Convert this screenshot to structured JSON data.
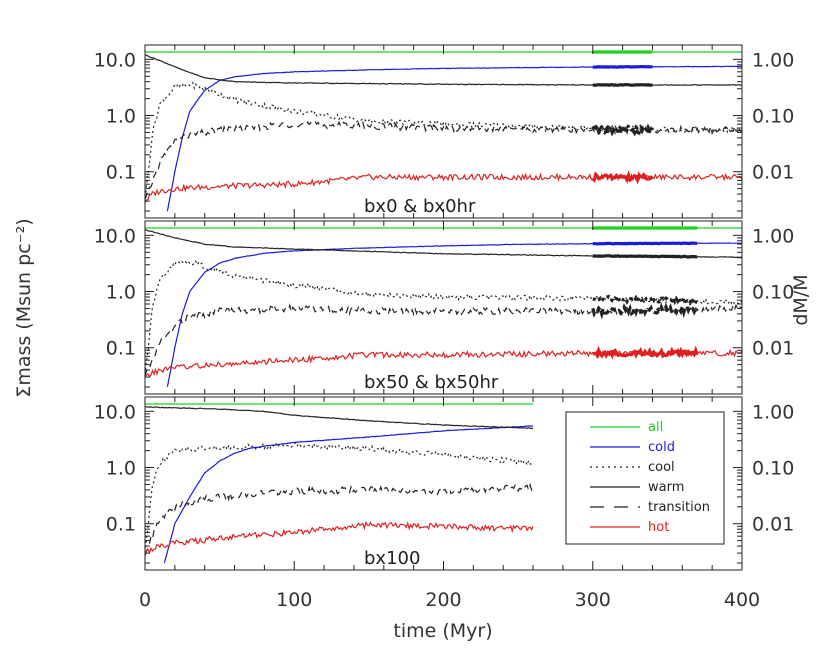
{
  "chart_data": {
    "type": "line",
    "xlabel": "time (Myr)",
    "ylabel_left": "Σmass (Msun pc⁻²)",
    "ylabel_right": "dM/M",
    "xlim": [
      0,
      400
    ],
    "x_ticks": [
      "0",
      "100",
      "200",
      "300",
      "400"
    ],
    "left_ticks": [
      "10.0",
      "1.0",
      "0.1"
    ],
    "right_ticks": [
      "1.00",
      "0.10",
      "0.01"
    ],
    "ylim_log": [
      0.015,
      18
    ],
    "legend": {
      "position": "lower-right of bottom panel",
      "entries": [
        {
          "label": "all",
          "color": "#22cc22",
          "style": "solid"
        },
        {
          "label": "cold",
          "color": "#1a1adc",
          "style": "solid"
        },
        {
          "label": "cool",
          "color": "#222222",
          "style": "dotted"
        },
        {
          "label": "warm",
          "color": "#222222",
          "style": "solid"
        },
        {
          "label": "transition",
          "color": "#222222",
          "style": "dashed"
        },
        {
          "label": "hot",
          "color": "#e02020",
          "style": "solid"
        }
      ]
    },
    "panels": [
      {
        "title": "bx0 & bx0hr",
        "end": 400,
        "hr": [
          300,
          340
        ],
        "series": [
          {
            "name": "all",
            "x": [
              0,
              400
            ],
            "y": [
              13.5,
              13.5
            ]
          },
          {
            "name": "cold",
            "x": [
              15,
              20,
              25,
              30,
              40,
              50,
              60,
              80,
              100,
              150,
              200,
              250,
              300,
              350,
              400
            ],
            "y": [
              0.02,
              0.1,
              0.4,
              1.2,
              2.8,
              4.2,
              4.9,
              5.6,
              6.0,
              6.5,
              6.9,
              7.1,
              7.3,
              7.4,
              7.5
            ]
          },
          {
            "name": "warm",
            "x": [
              0,
              10,
              25,
              40,
              60,
              100,
              150,
              200,
              300,
              400
            ],
            "y": [
              12.0,
              9.5,
              6.5,
              4.7,
              4.0,
              3.8,
              3.7,
              3.6,
              3.5,
              3.5
            ]
          },
          {
            "name": "cool",
            "x": [
              0,
              5,
              10,
              20,
              30,
              40,
              60,
              100,
              150,
              200,
              300,
              400
            ],
            "y": [
              0.03,
              0.5,
              1.6,
              3.2,
              3.6,
              3.0,
              1.9,
              1.2,
              0.8,
              0.7,
              0.6,
              0.55
            ]
          },
          {
            "name": "transition",
            "x": [
              0,
              10,
              20,
              30,
              50,
              100,
              150,
              200,
              300,
              400
            ],
            "y": [
              0.03,
              0.15,
              0.35,
              0.45,
              0.55,
              0.7,
              0.65,
              0.6,
              0.55,
              0.55
            ]
          },
          {
            "name": "hot",
            "x": [
              0,
              5,
              10,
              20,
              50,
              100,
              150,
              200,
              300,
              400
            ],
            "y": [
              0.03,
              0.04,
              0.045,
              0.05,
              0.055,
              0.06,
              0.08,
              0.08,
              0.08,
              0.08
            ]
          }
        ]
      },
      {
        "title": "bx50 & bx50hr",
        "end": 400,
        "hr": [
          300,
          370
        ],
        "series": [
          {
            "name": "all",
            "x": [
              0,
              400
            ],
            "y": [
              13.5,
              13.5
            ]
          },
          {
            "name": "cold",
            "x": [
              15,
              20,
              25,
              30,
              40,
              50,
              60,
              80,
              100,
              150,
              200,
              250,
              300,
              350,
              400
            ],
            "y": [
              0.02,
              0.1,
              0.4,
              1.0,
              2.2,
              3.2,
              3.9,
              4.8,
              5.3,
              6.0,
              6.5,
              6.9,
              7.1,
              7.2,
              7.3
            ]
          },
          {
            "name": "warm",
            "x": [
              0,
              20,
              40,
              60,
              100,
              150,
              200,
              300,
              400
            ],
            "y": [
              12.5,
              9.0,
              7.0,
              6.2,
              5.7,
              5.2,
              4.7,
              4.3,
              4.1
            ]
          },
          {
            "name": "cool",
            "x": [
              0,
              5,
              10,
              20,
              30,
              40,
              60,
              100,
              150,
              200,
              300,
              400
            ],
            "y": [
              0.03,
              0.5,
              1.6,
              3.1,
              3.4,
              2.8,
              1.9,
              1.3,
              0.9,
              0.8,
              0.75,
              0.65
            ]
          },
          {
            "name": "transition",
            "x": [
              0,
              10,
              20,
              30,
              50,
              100,
              150,
              200,
              300,
              400
            ],
            "y": [
              0.03,
              0.12,
              0.25,
              0.35,
              0.45,
              0.5,
              0.45,
              0.45,
              0.45,
              0.5
            ]
          },
          {
            "name": "hot",
            "x": [
              0,
              5,
              10,
              20,
              50,
              100,
              150,
              200,
              300,
              400
            ],
            "y": [
              0.03,
              0.035,
              0.04,
              0.045,
              0.05,
              0.06,
              0.075,
              0.075,
              0.08,
              0.08
            ]
          }
        ]
      },
      {
        "title": "bx100",
        "end": 260,
        "series": [
          {
            "name": "all",
            "x": [
              0,
              260
            ],
            "y": [
              13.5,
              13.5
            ]
          },
          {
            "name": "cold",
            "x": [
              13,
              20,
              30,
              40,
              50,
              60,
              70,
              80,
              100,
              150,
              200,
              260
            ],
            "y": [
              0.02,
              0.1,
              0.3,
              0.8,
              1.3,
              1.8,
              2.2,
              2.4,
              2.8,
              3.5,
              4.5,
              5.5
            ]
          },
          {
            "name": "warm",
            "x": [
              0,
              20,
              50,
              80,
              100,
              150,
              200,
              260
            ],
            "y": [
              12.0,
              11.5,
              11.0,
              10.0,
              8.5,
              6.8,
              5.7,
              5.0
            ]
          },
          {
            "name": "cool",
            "x": [
              0,
              5,
              10,
              20,
              40,
              60,
              100,
              150,
              200,
              260
            ],
            "y": [
              0.03,
              0.5,
              1.2,
              2.0,
              2.2,
              2.3,
              2.5,
              2.2,
              1.7,
              1.2
            ]
          },
          {
            "name": "transition",
            "x": [
              0,
              10,
              20,
              40,
              60,
              100,
              150,
              200,
              260
            ],
            "y": [
              0.03,
              0.12,
              0.2,
              0.28,
              0.32,
              0.38,
              0.4,
              0.38,
              0.45
            ]
          },
          {
            "name": "hot",
            "x": [
              0,
              5,
              10,
              20,
              50,
              100,
              150,
              200,
              260
            ],
            "y": [
              0.03,
              0.035,
              0.04,
              0.045,
              0.055,
              0.07,
              0.095,
              0.09,
              0.08
            ]
          }
        ]
      }
    ]
  }
}
